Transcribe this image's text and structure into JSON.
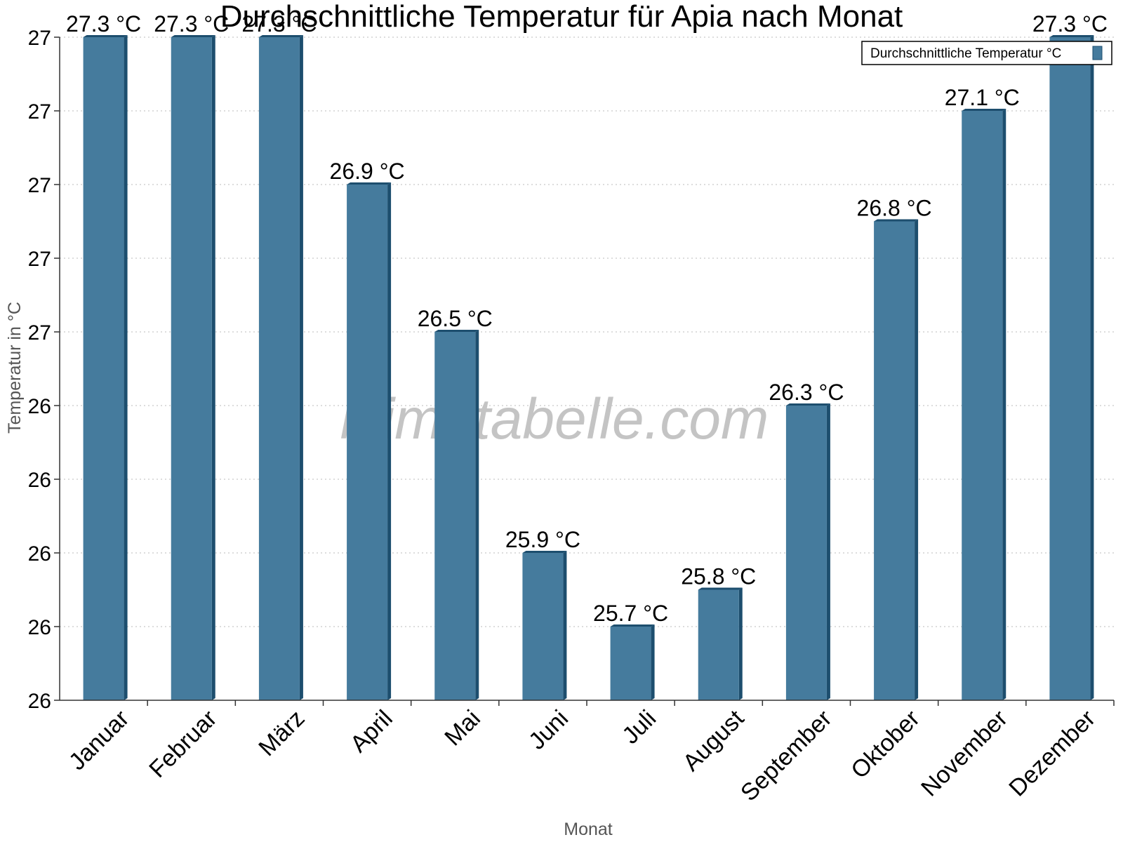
{
  "chart_data": {
    "type": "bar",
    "title": "Durchschnittliche Temperatur für Apia nach Monat",
    "xlabel": "Monat",
    "ylabel": "Temperatur in °C",
    "categories": [
      "Januar",
      "Februar",
      "März",
      "April",
      "Mai",
      "Juni",
      "Juli",
      "August",
      "September",
      "Oktober",
      "November",
      "Dezember"
    ],
    "series": [
      {
        "name": "Durchschnittliche Temperatur °C",
        "values": [
          27.3,
          27.3,
          27.3,
          26.9,
          26.5,
          25.9,
          25.7,
          25.8,
          26.3,
          26.8,
          27.1,
          27.3
        ],
        "labels": [
          "27.3 °C",
          "27.3 °C",
          "27.3 °C",
          "26.9 °C",
          "26.5 °C",
          "25.9 °C",
          "25.7 °C",
          "25.8 °C",
          "26.3 °C",
          "26.8 °C",
          "27.1 °C",
          "27.3 °C"
        ]
      }
    ],
    "ylim": [
      25.5,
      27.3
    ],
    "yticks": [
      25.5,
      25.7,
      25.9,
      26.1,
      26.3,
      26.5,
      26.7,
      26.9,
      27.1,
      27.3
    ],
    "ytick_labels": [
      "26",
      "26",
      "26",
      "26",
      "26",
      "27",
      "27",
      "27",
      "27",
      "27"
    ],
    "grid": true,
    "legend_position": "top-right",
    "bar_color": "#457b9d",
    "bar_edge_color": "#1d4e6e",
    "watermark": "klimatabelle.com"
  }
}
